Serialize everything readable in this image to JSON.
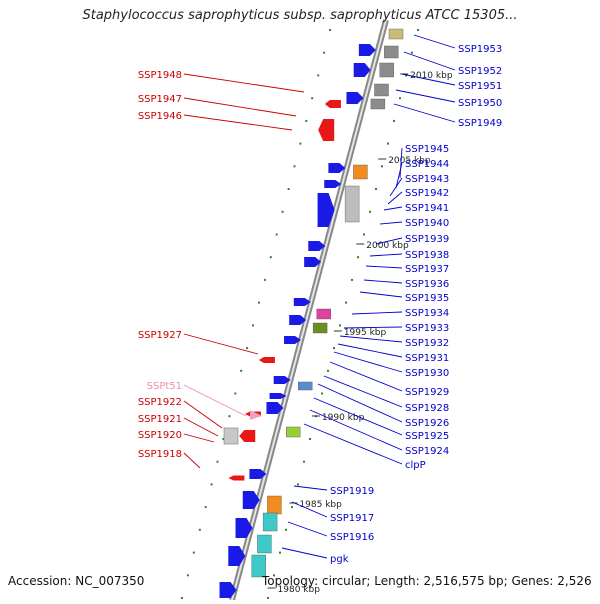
{
  "title": "Staphylococcus saprophyticus subsp. saprophyticus ATCC 15305...",
  "footer": {
    "accession": "Accession: NC_007350",
    "topology": "Topology: circular; Length: 2,516,575 bp; Genes: 2,526"
  },
  "colors": {
    "forward_label": "#0000cc",
    "reverse_label": "#cc0000",
    "trna_label": "#f08cb4",
    "backbone": "#888888",
    "ticks": "#228b22"
  },
  "scale_marks": [
    "2010 kbp",
    "2005 kbp",
    "2000 kbp",
    "1995 kbp",
    "1990 kbp",
    "1985 kbp",
    "1980 kbp"
  ],
  "forward_genes": [
    "SSP1953",
    "SSP1952",
    "SSP1951",
    "SSP1950",
    "SSP1949",
    "SSP1945",
    "SSP1944",
    "SSP1943",
    "SSP1942",
    "SSP1941",
    "SSP1940",
    "SSP1939",
    "SSP1938",
    "SSP1937",
    "SSP1936",
    "SSP1935",
    "SSP1934",
    "SSP1933",
    "SSP1932",
    "SSP1931",
    "SSP1930",
    "SSP1929",
    "SSP1928",
    "SSP1926",
    "SSP1925",
    "SSP1924",
    "clpP",
    "SSP1919",
    "SSP1917",
    "SSP1916",
    "pgk"
  ],
  "reverse_genes": [
    "SSP1948",
    "SSP1947",
    "SSP1946",
    "SSP1927",
    "SSPt51",
    "SSP1922",
    "SSP1921",
    "SSP1920",
    "SSP1918"
  ]
}
